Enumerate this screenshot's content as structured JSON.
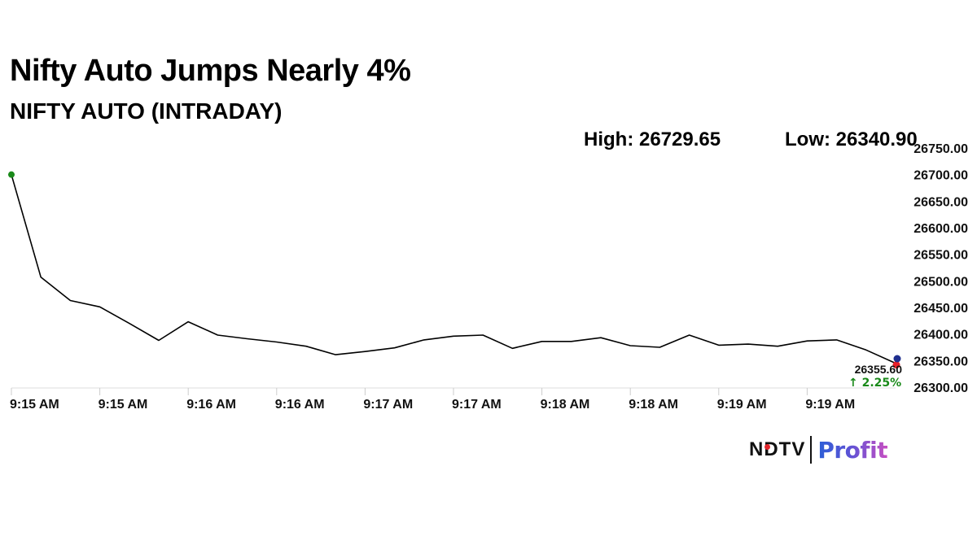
{
  "headline": "Nifty Auto Jumps Nearly 4%",
  "subtitle": "NIFTY AUTO (INTRADAY)",
  "stats": {
    "high": "High: 26729.65",
    "low": "Low: 26340.90"
  },
  "logo": {
    "ndtv": "NDTV",
    "profit": "Profit"
  },
  "chart_data": {
    "type": "line",
    "x_tick_labels": [
      "9:15 AM",
      "9:15 AM",
      "9:16 AM",
      "9:16 AM",
      "9:17 AM",
      "9:17 AM",
      "9:18 AM",
      "9:18 AM",
      "9:19 AM",
      "9:19 AM"
    ],
    "y_tick_labels": [
      "26300.00",
      "26350.00",
      "26400.00",
      "26450.00",
      "26500.00",
      "26550.00",
      "26600.00",
      "26650.00",
      "26700.00",
      "26750.00"
    ],
    "ylim": [
      26300,
      26750
    ],
    "y_position": "right",
    "grid": false,
    "values": [
      26700,
      26507,
      26463,
      26451,
      26420,
      26388,
      26423,
      26398,
      26391,
      26385,
      26377,
      26361,
      26367,
      26374,
      26389,
      26396,
      26398,
      26373,
      26386,
      26386,
      26393,
      26378,
      26375,
      26398,
      26379,
      26381,
      26377,
      26387,
      26389,
      26370,
      26345
    ],
    "last_value_label": "26355.60",
    "change_label": "↑ 2.25%",
    "colors": {
      "line": "#000000",
      "start_marker": "#1a8a1a",
      "end_marker": "#e8202a",
      "ref_marker": "#1f2f8f",
      "change": "#1a8a1a"
    }
  }
}
